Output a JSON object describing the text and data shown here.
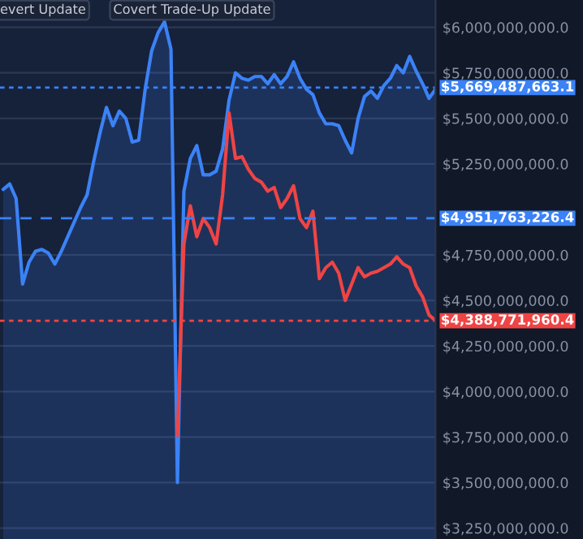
{
  "chart_data": {
    "type": "line",
    "categories": [
      null,
      null,
      null,
      null,
      null,
      null,
      null,
      null,
      null,
      null,
      null,
      null,
      null,
      null,
      null,
      null,
      null,
      null,
      null,
      null,
      null,
      null,
      null,
      null,
      null,
      null,
      null,
      null,
      null,
      null,
      null,
      null,
      null,
      null,
      null,
      null,
      null,
      null,
      null,
      null,
      null,
      null,
      null,
      null,
      null,
      null,
      null,
      null,
      null,
      null,
      null,
      null,
      null,
      null,
      null,
      null,
      null,
      null,
      null,
      null,
      null,
      null,
      null,
      null,
      null,
      null,
      null,
      null
    ],
    "series": [
      {
        "type": "area",
        "color": "#3b82f6",
        "values": [
          5110000000.0,
          5140000000.0,
          5060000000.0,
          4590000000.0,
          4710000000.0,
          4770000000.0,
          4780000000.0,
          4760000000.0,
          4700000000.0,
          4770000000.0,
          4850000000.0,
          4930000000.0,
          5010000000.0,
          5080000000.0,
          5260000000.0,
          5420000000.0,
          5560000000.0,
          5460000000.0,
          5540000000.0,
          5500000000.0,
          5370000000.0,
          5380000000.0,
          5660000000.0,
          5870000000.0,
          5970000000.0,
          6030000000.0,
          5880000000.0,
          3500000000.0,
          5100000000.0,
          5280000000.0,
          5350000000.0,
          5190000000.0,
          5190000000.0,
          5210000000.0,
          5330000000.0,
          5600000000.0,
          5750000000.0,
          5720000000.0,
          5710000000.0,
          5730000000.0,
          5730000000.0,
          5690000000.0,
          5740000000.0,
          5690000000.0,
          5730000000.0,
          5810000000.0,
          5720000000.0,
          5660000000.0,
          5630000000.0,
          5530000000.0,
          5470000000.0,
          5470000000.0,
          5460000000.0,
          5380000000.0,
          5310000000.0,
          5500000000.0,
          5620000000.0,
          5650000000.0,
          5610000000.0,
          5680000000.0,
          5720000000.0,
          5790000000.0,
          5750000000.0,
          5840000000.0,
          5760000000.0,
          5690000000.0,
          5610000000.0,
          5660000000.0
        ]
      },
      {
        "color": "#ef4444",
        "values": [
          null,
          null,
          null,
          null,
          null,
          null,
          null,
          null,
          null,
          null,
          null,
          null,
          null,
          null,
          null,
          null,
          null,
          null,
          null,
          null,
          null,
          null,
          null,
          null,
          null,
          null,
          null,
          3760000000.0,
          4810000000.0,
          5020000000.0,
          4850000000.0,
          4950000000.0,
          4900000000.0,
          4810000000.0,
          5080000000.0,
          5530000000.0,
          5280000000.0,
          5290000000.0,
          5220000000.0,
          5170000000.0,
          5150000000.0,
          5100000000.0,
          5120000000.0,
          5010000000.0,
          5060000000.0,
          5130000000.0,
          4950000000.0,
          4900000000.0,
          4990000000.0,
          4620000000.0,
          4680000000.0,
          4710000000.0,
          4650000000.0,
          4500000000.0,
          4590000000.0,
          4680000000.0,
          4630000000.0,
          4650000000.0,
          4660000000.0,
          4680000000.0,
          4700000000.0,
          4740000000.0,
          4700000000.0,
          4680000000.0,
          4580000000.0,
          4520000000.0,
          4420000000.0,
          4390000000.0
        ]
      }
    ],
    "ylim": [
      3190000000.0,
      6150000000.0
    ],
    "yticks": [
      {
        "value": 3250000000.0,
        "label": "$3,250,000,000.0"
      },
      {
        "value": 3500000000.0,
        "label": "$3,500,000,000.0"
      },
      {
        "value": 3750000000.0,
        "label": "$3,750,000,000.0"
      },
      {
        "value": 4000000000.0,
        "label": "$4,000,000,000.0"
      },
      {
        "value": 4250000000.0,
        "label": "$4,250,000,000.0"
      },
      {
        "value": 4500000000.0,
        "label": "$4,500,000,000.0"
      },
      {
        "value": 4750000000.0,
        "label": "$4,750,000,000.0"
      },
      {
        "value": 5250000000.0,
        "label": "$5,250,000,000.0"
      },
      {
        "value": 5500000000.0,
        "label": "$5,500,000,000.0"
      },
      {
        "value": 5750000000.0,
        "label": "$5,750,000,000.0"
      },
      {
        "value": 6000000000.0,
        "label": "$6,000,000,000.0"
      }
    ],
    "ref_lines": [
      {
        "axis": "y",
        "value": 5669487663.1,
        "label": "$5,669,487,663.1",
        "color": "#3b82f6",
        "line_style": "dotted"
      },
      {
        "axis": "y",
        "value": 4951763226.4,
        "label": "$4,951,763,226.4",
        "color": "#3b82f6",
        "line_style": "dashed"
      },
      {
        "axis": "y",
        "value": 4388771960.4,
        "label": "$4,388,771,960.4",
        "color": "#ef4444",
        "line_style": "dotted"
      }
    ],
    "annotations": [
      "evert Update",
      "Covert Trade-Up Update"
    ],
    "grid": "y",
    "legend": false,
    "marker": "none",
    "line_style": "solid"
  }
}
